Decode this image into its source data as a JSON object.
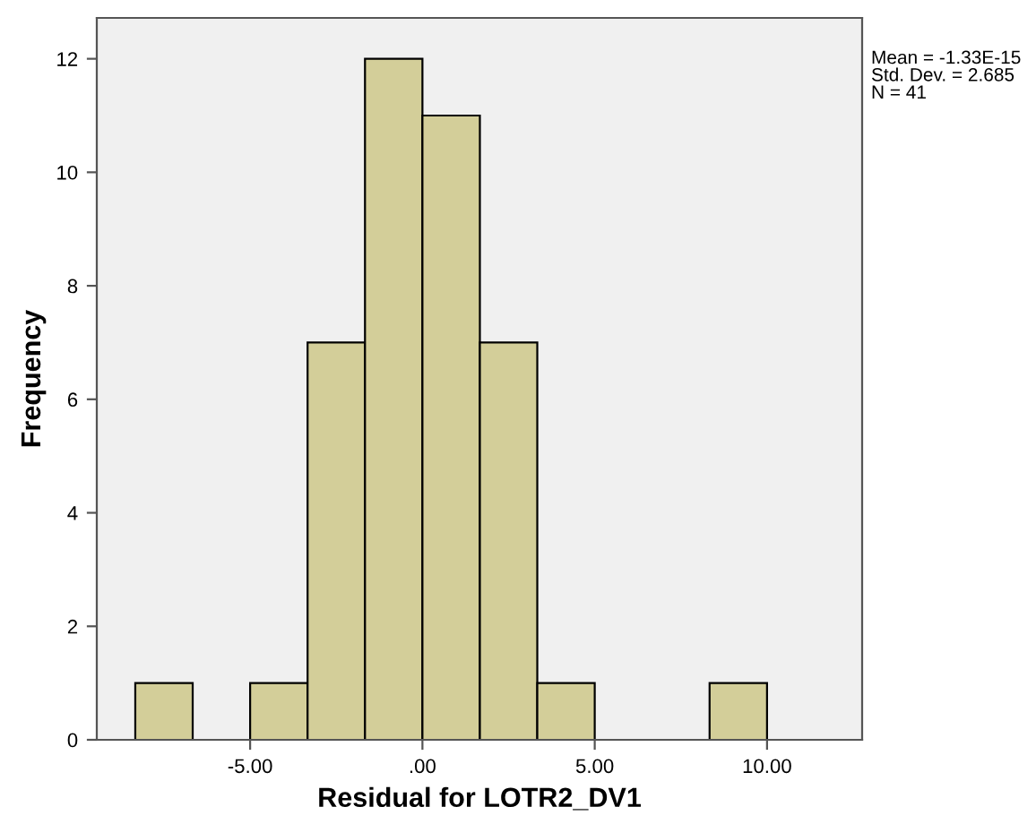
{
  "chart_data": {
    "type": "histogram",
    "xlabel": "Residual for LOTR2_DV1",
    "ylabel": "Frequency",
    "bins": [
      -8.333,
      -6.667,
      -5,
      -3.333,
      -1.667,
      0,
      1.667,
      3.333,
      5,
      6.667,
      8.333,
      10
    ],
    "values": [
      1,
      0,
      1,
      7,
      12,
      11,
      7,
      1,
      0,
      0,
      1
    ],
    "color": "#d3ce99",
    "xlim": [
      -9.45,
      12.76
    ],
    "xticks": [
      {
        "value": -5,
        "label": "-5.00"
      },
      {
        "value": 0,
        "label": ".00"
      },
      {
        "value": 5,
        "label": "5.00"
      },
      {
        "value": 10,
        "label": "10.00"
      }
    ],
    "ylim": [
      0,
      12.72
    ],
    "yticks": [
      0,
      2,
      4,
      6,
      8,
      10,
      12
    ],
    "grid": false,
    "annotations": [
      "Mean = -1.33E-15\nStd. Dev. = 2.685\nN = 41"
    ]
  }
}
